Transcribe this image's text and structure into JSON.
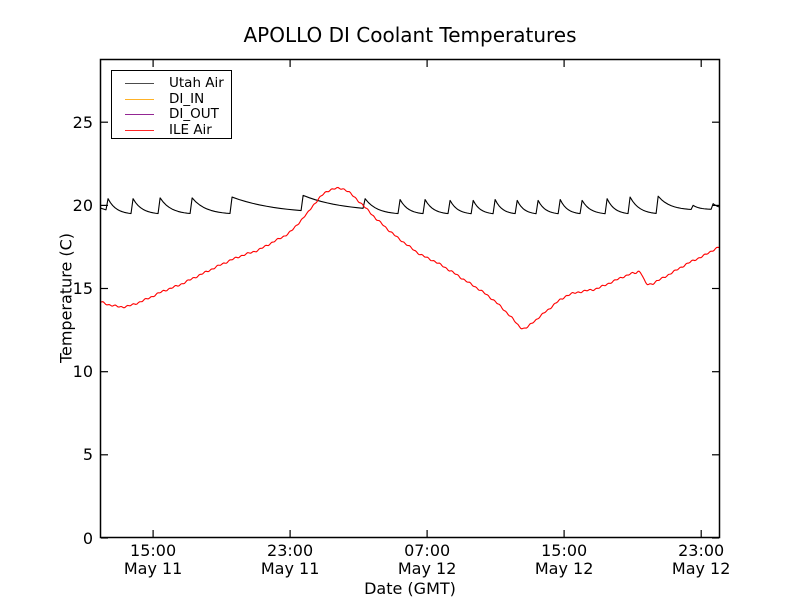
{
  "chart_data": {
    "type": "line",
    "title": "APOLLO DI Coolant Temperatures",
    "xlabel": "Date (GMT)",
    "ylabel": "Temperature (C)",
    "time_origin": "May 11 12:00 GMT (t in hours)",
    "xlim_hours": [
      -0.1,
      36.1
    ],
    "ylim": [
      0,
      28.8
    ],
    "grid": false,
    "yticks": [
      0,
      5,
      10,
      15,
      20,
      25
    ],
    "ytick_labels": [
      "0",
      "5",
      "10",
      "15",
      "20",
      "25"
    ],
    "xticks": [
      {
        "t": 3,
        "label": "15:00\nMay 11"
      },
      {
        "t": 11,
        "label": "23:00\nMay 11"
      },
      {
        "t": 19,
        "label": "07:00\nMay 12"
      },
      {
        "t": 27,
        "label": "15:00\nMay 12"
      },
      {
        "t": 35,
        "label": "23:00\nMay 12"
      }
    ],
    "legend": {
      "position": "upper left"
    },
    "series": [
      {
        "name": "Utah Air",
        "color": "#000000",
        "opacity": 1,
        "type": "sawtooth",
        "start": [
          -0.1,
          19.85
        ],
        "end_t": 36.1,
        "base_trough": 19.45,
        "teeth": [
          {
            "t": 0.37,
            "peak": 20.4
          },
          {
            "t": 1.83,
            "peak": 20.4
          },
          {
            "t": 3.41,
            "peak": 20.45
          },
          {
            "t": 5.28,
            "peak": 20.45
          },
          {
            "t": 7.61,
            "peak": 20.5
          },
          {
            "t": 11.76,
            "peak": 20.6,
            "trough": 19.6
          },
          {
            "t": 15.38,
            "peak": 20.4
          },
          {
            "t": 17.42,
            "peak": 20.35
          },
          {
            "t": 18.88,
            "peak": 20.35
          },
          {
            "t": 20.34,
            "peak": 20.3
          },
          {
            "t": 21.69,
            "peak": 20.3
          },
          {
            "t": 22.97,
            "peak": 20.35
          },
          {
            "t": 24.26,
            "peak": 20.3
          },
          {
            "t": 25.48,
            "peak": 20.3
          },
          {
            "t": 26.77,
            "peak": 20.35
          },
          {
            "t": 28.05,
            "peak": 20.3
          },
          {
            "t": 29.51,
            "peak": 20.4
          },
          {
            "t": 30.85,
            "peak": 20.5
          },
          {
            "t": 32.49,
            "peak": 20.55,
            "trough": 19.7
          },
          {
            "t": 34.53,
            "peak": 20.0,
            "trough": 19.75
          },
          {
            "t": 35.7,
            "peak": 20.1,
            "trough": 19.75
          }
        ]
      },
      {
        "name": "DI_IN",
        "color": "#ffa500",
        "opacity": 0.55,
        "type": "constant",
        "value": 0.0
      },
      {
        "name": "DI_OUT",
        "color": "#800080",
        "opacity": 0.7,
        "type": "constant",
        "value": 0.0
      },
      {
        "name": "ILE Air",
        "color": "#ff0000",
        "opacity": 1,
        "type": "points",
        "noise": true,
        "points": [
          [
            -0.1,
            14.2
          ],
          [
            0.5,
            14.0
          ],
          [
            1.3,
            13.9
          ],
          [
            2.0,
            14.1
          ],
          [
            2.8,
            14.45
          ],
          [
            3.6,
            14.85
          ],
          [
            4.5,
            15.2
          ],
          [
            5.4,
            15.65
          ],
          [
            6.3,
            16.1
          ],
          [
            7.2,
            16.55
          ],
          [
            8.1,
            16.95
          ],
          [
            9.1,
            17.3
          ],
          [
            10.0,
            17.8
          ],
          [
            11.0,
            18.4
          ],
          [
            12.0,
            19.5
          ],
          [
            12.6,
            20.3
          ],
          [
            13.1,
            20.8
          ],
          [
            13.6,
            21.0
          ],
          [
            14.2,
            20.95
          ],
          [
            14.8,
            20.45
          ],
          [
            15.4,
            19.85
          ],
          [
            16.0,
            19.2
          ],
          [
            17.0,
            18.3
          ],
          [
            17.8,
            17.65
          ],
          [
            18.6,
            17.05
          ],
          [
            19.5,
            16.6
          ],
          [
            20.3,
            16.1
          ],
          [
            21.2,
            15.5
          ],
          [
            22.1,
            14.9
          ],
          [
            23.0,
            14.2
          ],
          [
            23.8,
            13.4
          ],
          [
            24.6,
            12.6
          ],
          [
            25.2,
            13.0
          ],
          [
            25.9,
            13.6
          ],
          [
            26.9,
            14.4
          ],
          [
            27.5,
            14.7
          ],
          [
            28.2,
            14.85
          ],
          [
            28.9,
            15.0
          ],
          [
            29.8,
            15.4
          ],
          [
            30.7,
            15.8
          ],
          [
            31.2,
            15.95
          ],
          [
            31.45,
            16.0
          ],
          [
            31.75,
            15.35
          ],
          [
            32.0,
            15.25
          ],
          [
            32.4,
            15.45
          ],
          [
            33.2,
            15.9
          ],
          [
            34.2,
            16.5
          ],
          [
            35.2,
            17.0
          ],
          [
            36.1,
            17.5
          ]
        ]
      }
    ]
  }
}
